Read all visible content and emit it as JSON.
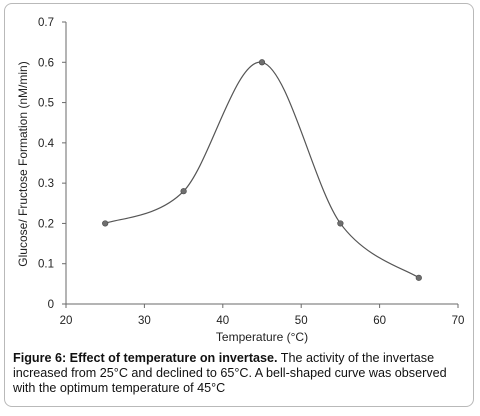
{
  "chart_data": {
    "type": "line",
    "title": "",
    "xlabel": "Temperature (°C)",
    "ylabel": "Glucose/ Fructose Formation (nM/min)",
    "xlim": [
      20,
      70
    ],
    "ylim": [
      0,
      0.7
    ],
    "x_ticks": [
      "20",
      "30",
      "40",
      "50",
      "60",
      "70"
    ],
    "y_ticks": [
      "0",
      "0.1",
      "0.2",
      "0.3",
      "0.4",
      "0.5",
      "0.6",
      "0.7"
    ],
    "grid": false,
    "legend": "none",
    "series": [
      {
        "x": [
          25,
          35,
          45,
          55,
          65
        ],
        "y": [
          0.2,
          0.28,
          0.6,
          0.2,
          0.065
        ],
        "color": "#555555",
        "marker": "circle",
        "smooth": true
      }
    ]
  },
  "caption": {
    "label": "Figure 6: Effect of temperature on invertase.",
    "text": " The activity of the invertase increased from 25°C and declined to 65°C. A bell-shaped curve was observed with the optimum temperature of 45°C"
  }
}
